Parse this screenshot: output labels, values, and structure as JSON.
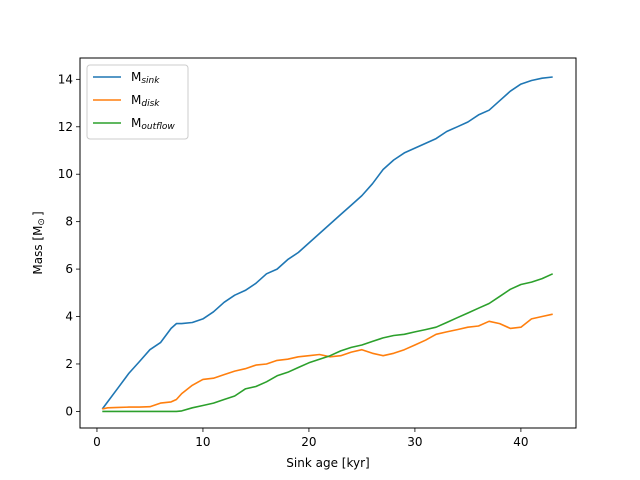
{
  "chart_data": {
    "type": "line",
    "xlabel": "Sink age [kyr]",
    "ylabel": "Mass [M",
    "ylabel_symbol": "⊙",
    "ylabel_close": "]",
    "xlim": [
      -1.6,
      45.2
    ],
    "ylim": [
      -0.7,
      14.9
    ],
    "x_ticks": [
      0,
      10,
      20,
      30,
      40
    ],
    "y_ticks": [
      0,
      2,
      4,
      6,
      8,
      10,
      12,
      14
    ],
    "grid": false,
    "legend_position": "top-left",
    "series": [
      {
        "name": "M",
        "subscript": "sink",
        "color": "#1f77b4",
        "x": [
          0.5,
          1,
          2,
          3,
          4,
          5,
          6,
          7,
          7.5,
          8,
          9,
          10,
          11,
          12,
          13,
          14,
          15,
          16,
          17,
          18,
          19,
          20,
          21,
          22,
          23,
          24,
          25,
          26,
          27,
          28,
          29,
          30,
          31,
          32,
          33,
          34,
          35,
          36,
          37,
          38,
          39,
          40,
          41,
          42,
          43
        ],
        "y": [
          0.1,
          0.4,
          1.0,
          1.6,
          2.1,
          2.6,
          2.9,
          3.5,
          3.7,
          3.7,
          3.75,
          3.9,
          4.2,
          4.6,
          4.9,
          5.1,
          5.4,
          5.8,
          6.0,
          6.4,
          6.7,
          7.1,
          7.5,
          7.9,
          8.3,
          8.7,
          9.1,
          9.6,
          10.2,
          10.6,
          10.9,
          11.1,
          11.3,
          11.5,
          11.8,
          12.0,
          12.2,
          12.5,
          12.7,
          13.1,
          13.5,
          13.8,
          13.95,
          14.05,
          14.1
        ]
      },
      {
        "name": "M",
        "subscript": "disk",
        "color": "#ff7f0e",
        "x": [
          0.5,
          1,
          2,
          3,
          4,
          5,
          6,
          7,
          7.5,
          8,
          9,
          10,
          11,
          12,
          13,
          14,
          15,
          16,
          17,
          18,
          19,
          20,
          21,
          22,
          23,
          24,
          25,
          26,
          27,
          28,
          29,
          30,
          31,
          32,
          33,
          34,
          35,
          36,
          37,
          38,
          39,
          40,
          41,
          42,
          43
        ],
        "y": [
          0.1,
          0.15,
          0.17,
          0.18,
          0.18,
          0.2,
          0.35,
          0.4,
          0.5,
          0.75,
          1.1,
          1.35,
          1.4,
          1.55,
          1.7,
          1.8,
          1.95,
          2.0,
          2.15,
          2.2,
          2.3,
          2.35,
          2.4,
          2.3,
          2.35,
          2.5,
          2.6,
          2.45,
          2.35,
          2.45,
          2.6,
          2.8,
          3.0,
          3.25,
          3.35,
          3.45,
          3.55,
          3.6,
          3.8,
          3.7,
          3.5,
          3.55,
          3.9,
          4.0,
          4.1
        ]
      },
      {
        "name": "M",
        "subscript": "outflow",
        "color": "#2ca02c",
        "x": [
          0.5,
          1,
          2,
          3,
          4,
          5,
          6,
          7,
          7.5,
          8,
          9,
          10,
          11,
          12,
          13,
          14,
          15,
          16,
          17,
          18,
          19,
          20,
          21,
          22,
          23,
          24,
          25,
          26,
          27,
          28,
          29,
          30,
          31,
          32,
          33,
          34,
          35,
          36,
          37,
          38,
          39,
          40,
          41,
          42,
          43
        ],
        "y": [
          0.0,
          0.0,
          0.0,
          0.0,
          0.0,
          0.0,
          0.0,
          0.0,
          0.0,
          0.02,
          0.15,
          0.25,
          0.35,
          0.5,
          0.65,
          0.95,
          1.05,
          1.25,
          1.5,
          1.65,
          1.85,
          2.05,
          2.2,
          2.35,
          2.55,
          2.7,
          2.8,
          2.95,
          3.1,
          3.2,
          3.25,
          3.35,
          3.45,
          3.55,
          3.75,
          3.95,
          4.15,
          4.35,
          4.55,
          4.85,
          5.15,
          5.35,
          5.45,
          5.6,
          5.8
        ]
      }
    ]
  }
}
